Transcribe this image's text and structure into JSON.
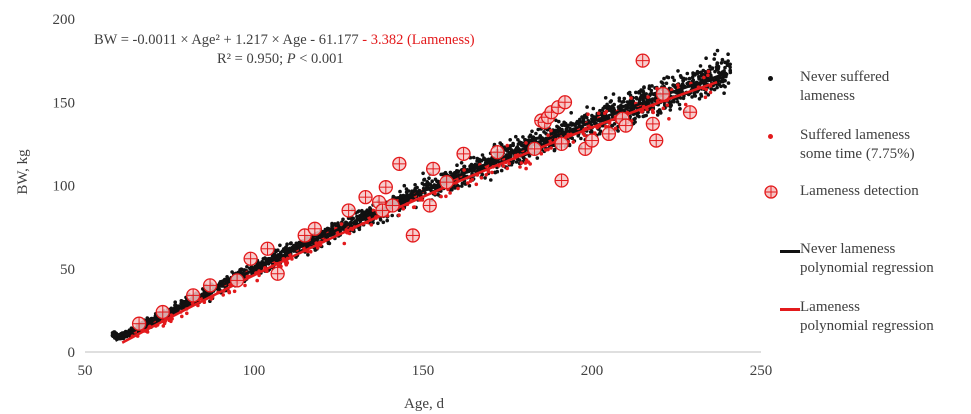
{
  "chart_data": {
    "type": "scatter",
    "title": "",
    "xlabel": "Age, d",
    "ylabel": "BW, kg",
    "xlim": [
      50,
      250
    ],
    "ylim": [
      0,
      200
    ],
    "x_ticks": [
      50,
      100,
      150,
      200,
      250
    ],
    "y_ticks": [
      0,
      50,
      100,
      150,
      200
    ],
    "grid": false,
    "legend_position": "right",
    "equation_black": "BW = -0.0011 × Age² + 1.217 × Age - 61.177",
    "equation_red": " - 3.382 (Lameness)",
    "r2_prefix": "R² = 0.950; ",
    "p_italic": "P",
    "p_suffix": " < 0.001",
    "series": [
      {
        "name": "Never suffered lameness",
        "kind": "scatter",
        "color": "#111111",
        "x_range": [
          58,
          241
        ],
        "trend": "never_lameness_polynomial"
      },
      {
        "name": "Suffered lameness some time (7.75%)",
        "kind": "scatter",
        "color": "#e31a1c",
        "x_range": [
          62,
          237
        ],
        "trend": "lameness_polynomial"
      },
      {
        "name": "Lameness detection",
        "kind": "marker",
        "color": "#e31a1c",
        "points": [
          [
            66,
            17
          ],
          [
            73,
            24
          ],
          [
            82,
            34
          ],
          [
            87,
            40
          ],
          [
            95,
            43
          ],
          [
            99,
            56
          ],
          [
            104,
            62
          ],
          [
            107,
            47
          ],
          [
            115,
            70
          ],
          [
            118,
            74
          ],
          [
            128,
            85
          ],
          [
            133,
            93
          ],
          [
            137,
            90
          ],
          [
            138,
            85
          ],
          [
            139,
            99
          ],
          [
            141,
            88
          ],
          [
            143,
            113
          ],
          [
            147,
            70
          ],
          [
            152,
            88
          ],
          [
            153,
            110
          ],
          [
            157,
            102
          ],
          [
            162,
            119
          ],
          [
            172,
            120
          ],
          [
            183,
            122
          ],
          [
            185,
            139
          ],
          [
            186,
            138
          ],
          [
            187,
            141
          ],
          [
            188,
            144
          ],
          [
            190,
            147
          ],
          [
            191,
            125
          ],
          [
            191,
            103
          ],
          [
            192,
            150
          ],
          [
            198,
            122
          ],
          [
            200,
            127
          ],
          [
            205,
            131
          ],
          [
            209,
            140
          ],
          [
            210,
            136
          ],
          [
            215,
            175
          ],
          [
            218,
            137
          ],
          [
            219,
            127
          ],
          [
            221,
            155
          ],
          [
            229,
            144
          ]
        ]
      },
      {
        "name": "Never lameness polynomial regression",
        "kind": "line",
        "color": "#111111",
        "x": [
          59,
          240
        ],
        "coef": [
          -0.0011,
          1.217,
          -61.177
        ]
      },
      {
        "name": "Lameness polynomial regression",
        "kind": "line",
        "color": "#e31a1c",
        "x": [
          61,
          237
        ],
        "coef": [
          -0.0011,
          1.217,
          -64.559
        ]
      }
    ]
  },
  "legend": {
    "items": [
      {
        "label_line1": "Never suffered",
        "label_line2": "lameness"
      },
      {
        "label_line1": "Suffered lameness",
        "label_line2": "some time (7.75%)"
      },
      {
        "label_line1": "Lameness detection",
        "label_line2": ""
      },
      {
        "label_line1": "Never lameness",
        "label_line2": "polynomial regression"
      },
      {
        "label_line1": "Lameness",
        "label_line2": "polynomial regression"
      }
    ]
  }
}
